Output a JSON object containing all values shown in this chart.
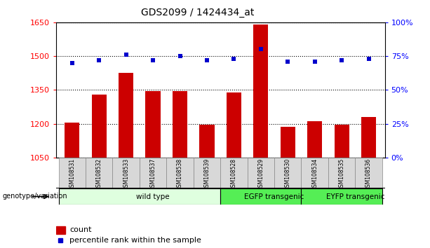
{
  "title": "GDS2099 / 1424434_at",
  "samples": [
    "GSM108531",
    "GSM108532",
    "GSM108533",
    "GSM108537",
    "GSM108538",
    "GSM108539",
    "GSM108528",
    "GSM108529",
    "GSM108530",
    "GSM108534",
    "GSM108535",
    "GSM108536"
  ],
  "counts": [
    1205,
    1330,
    1425,
    1345,
    1345,
    1195,
    1340,
    1640,
    1185,
    1210,
    1195,
    1230
  ],
  "percentiles": [
    70,
    72,
    76,
    72,
    75,
    72,
    73,
    80,
    71,
    71,
    72,
    73
  ],
  "groups": [
    {
      "label": "wild type",
      "start": 0,
      "end": 6,
      "color": "#dfffdf"
    },
    {
      "label": "EGFP transgenic",
      "start": 6,
      "end": 9,
      "color": "#55ee55"
    },
    {
      "label": "EYFP transgenic",
      "start": 9,
      "end": 12,
      "color": "#55ee55"
    }
  ],
  "ylim_left": [
    1050,
    1650
  ],
  "ylim_right": [
    0,
    100
  ],
  "yticks_left": [
    1050,
    1200,
    1350,
    1500,
    1650
  ],
  "yticks_right": [
    0,
    25,
    50,
    75,
    100
  ],
  "bar_color": "#cc0000",
  "dot_color": "#0000cc",
  "grid_color": "#000000",
  "bg_color": "#ffffff",
  "label_count": "count",
  "label_percentile": "percentile rank within the sample",
  "genotype_label": "genotype/variation"
}
